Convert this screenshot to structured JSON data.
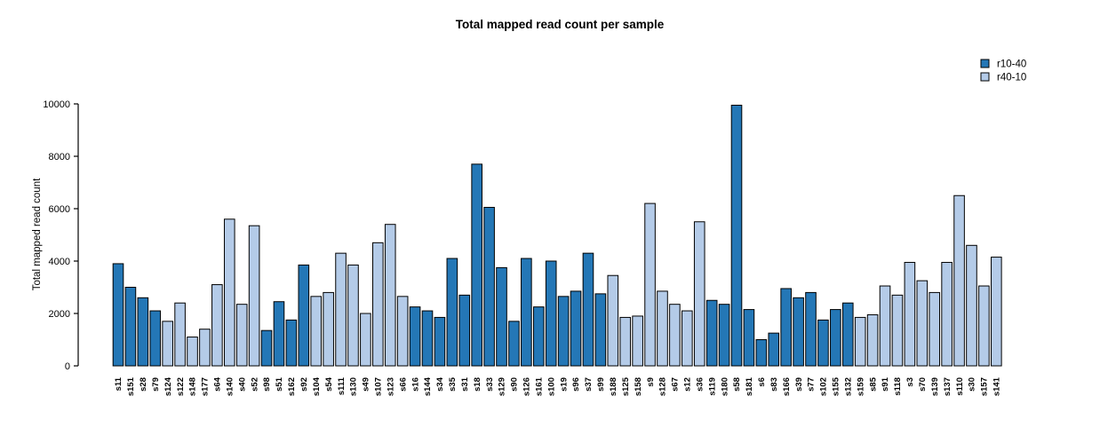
{
  "title": "Total mapped read count per sample",
  "legend": {
    "items": [
      {
        "label": "r10-40",
        "color": "#2477B6"
      },
      {
        "label": "r40-10",
        "color": "#B4CBE8"
      }
    ]
  },
  "chart_data": {
    "type": "bar",
    "title": "Total mapped read count per sample",
    "xlabel": "",
    "ylabel": "Total mapped read count",
    "ylim": [
      0,
      10000
    ],
    "yticks": [
      0,
      2000,
      4000,
      6000,
      8000,
      10000
    ],
    "grid": false,
    "legend_position": "top-right",
    "bar_border_color": "#000000",
    "series_colors": {
      "r10-40": "#2477B6",
      "r40-10": "#B4CBE8"
    },
    "categories": [
      "s11",
      "s151",
      "s28",
      "s79",
      "s124",
      "s122",
      "s148",
      "s177",
      "s64",
      "s140",
      "s40",
      "s52",
      "s98",
      "s51",
      "s162",
      "s92",
      "s104",
      "s54",
      "s111",
      "s130",
      "s49",
      "s107",
      "s123",
      "s66",
      "s16",
      "s144",
      "s34",
      "s35",
      "s31",
      "s18",
      "s33",
      "s129",
      "s90",
      "s126",
      "s161",
      "s100",
      "s19",
      "s96",
      "s37",
      "s99",
      "s188",
      "s125",
      "s158",
      "s9",
      "s128",
      "s67",
      "s12",
      "s36",
      "s119",
      "s180",
      "s58",
      "s181",
      "s6",
      "s83",
      "s166",
      "s39",
      "s77",
      "s102",
      "s155",
      "s132",
      "s159",
      "s85",
      "s91",
      "s118",
      "s3",
      "s70",
      "s139",
      "s137",
      "s110",
      "s30",
      "s157",
      "s141"
    ],
    "values": [
      3900,
      3000,
      2600,
      2100,
      1700,
      2400,
      1100,
      1400,
      3100,
      5600,
      2350,
      5350,
      1350,
      2450,
      1750,
      3850,
      2650,
      2800,
      4300,
      3850,
      2000,
      4700,
      5400,
      2650,
      2250,
      2100,
      1850,
      4100,
      2700,
      7700,
      6050,
      3750,
      1700,
      4100,
      2250,
      4000,
      2650,
      2850,
      4300,
      2750,
      3450,
      1850,
      1900,
      6200,
      2850,
      2350,
      2100,
      5500,
      2500,
      2350,
      9950,
      2150,
      1000,
      1250,
      2950,
      2600,
      2800,
      1750,
      2150,
      2400,
      1850,
      1950,
      3050,
      2700,
      3950,
      3250,
      2800,
      3950,
      6500,
      4600,
      3050,
      4150
    ],
    "groups": [
      "r10-40",
      "r10-40",
      "r10-40",
      "r10-40",
      "r40-10",
      "r40-10",
      "r40-10",
      "r40-10",
      "r40-10",
      "r40-10",
      "r40-10",
      "r40-10",
      "r10-40",
      "r10-40",
      "r10-40",
      "r10-40",
      "r40-10",
      "r40-10",
      "r40-10",
      "r40-10",
      "r40-10",
      "r40-10",
      "r40-10",
      "r40-10",
      "r10-40",
      "r10-40",
      "r10-40",
      "r10-40",
      "r10-40",
      "r10-40",
      "r10-40",
      "r10-40",
      "r10-40",
      "r10-40",
      "r10-40",
      "r10-40",
      "r10-40",
      "r10-40",
      "r10-40",
      "r10-40",
      "r40-10",
      "r40-10",
      "r40-10",
      "r40-10",
      "r40-10",
      "r40-10",
      "r40-10",
      "r40-10",
      "r10-40",
      "r10-40",
      "r10-40",
      "r10-40",
      "r10-40",
      "r10-40",
      "r10-40",
      "r10-40",
      "r10-40",
      "r10-40",
      "r10-40",
      "r10-40",
      "r40-10",
      "r40-10",
      "r40-10",
      "r40-10",
      "r40-10",
      "r40-10",
      "r40-10",
      "r40-10",
      "r40-10",
      "r40-10",
      "r40-10",
      "r40-10"
    ]
  }
}
